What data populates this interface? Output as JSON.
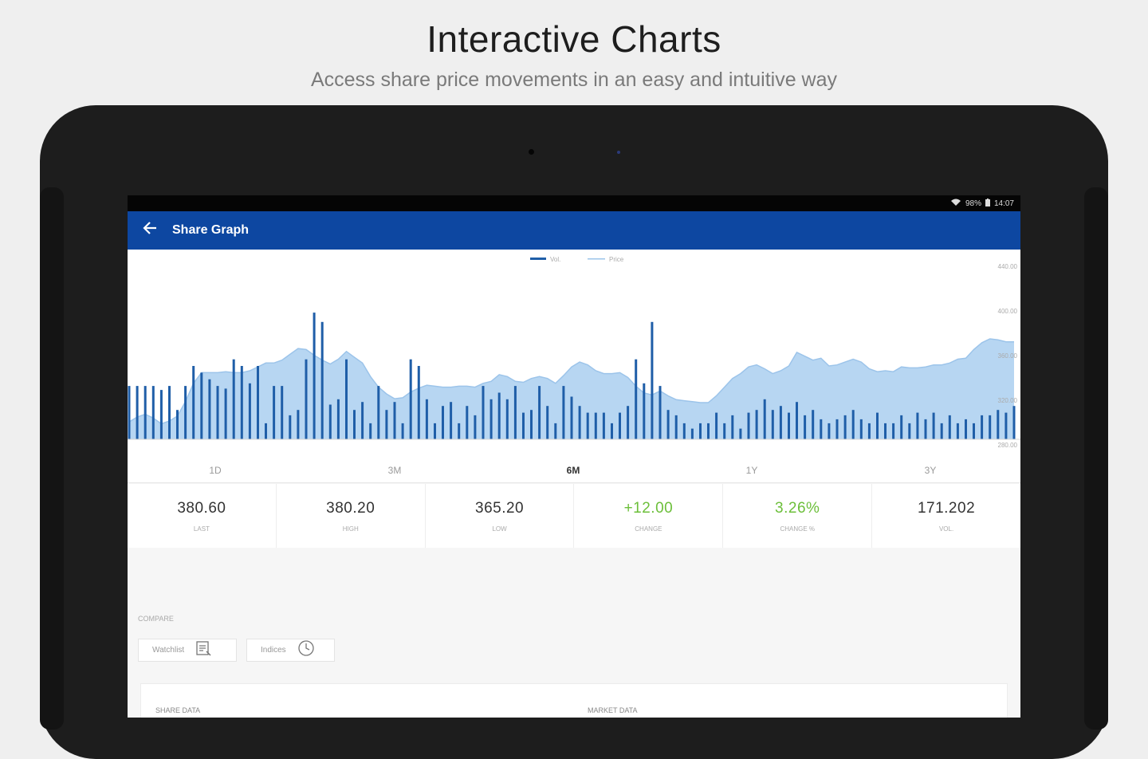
{
  "hero": {
    "title": "Interactive Charts",
    "subtitle": "Access share price movements in an easy and intuitive way"
  },
  "status_bar": {
    "signal_icon": "wifi-signal-icon",
    "battery_percent": "98%",
    "battery_icon": "battery-icon",
    "time": "14:07"
  },
  "app_bar": {
    "back_icon": "arrow-left-icon",
    "title": "Share Graph",
    "color": "#0d47a1"
  },
  "chart": {
    "legend": [
      "Vol.",
      "Price"
    ],
    "colors": {
      "volume": "#1f5ea8",
      "price_fill": "#b7d6f2",
      "price_line": "#9cc4ea"
    },
    "y_ticks": [
      "440.00",
      "400.00",
      "360.00",
      "320.00",
      "280.00"
    ]
  },
  "chart_data": {
    "type": "area",
    "series": [
      {
        "name": "Price",
        "values": [
          278,
          283,
          286,
          282,
          276,
          279,
          284,
          299,
          318,
          329,
          329,
          329,
          330,
          329,
          329,
          331,
          335,
          339,
          339,
          342,
          348,
          354,
          353,
          347,
          342,
          338,
          343,
          351,
          345,
          339,
          325,
          314,
          307,
          302,
          303,
          309,
          313,
          316,
          315,
          314,
          314,
          315,
          315,
          314,
          318,
          320,
          327,
          325,
          320,
          319,
          323,
          325,
          323,
          318,
          326,
          335,
          340,
          337,
          331,
          328,
          328,
          329,
          324,
          315,
          308,
          306,
          310,
          305,
          301,
          300,
          299,
          298,
          298,
          305,
          314,
          323,
          328,
          335,
          337,
          333,
          328,
          331,
          336,
          350,
          346,
          342,
          344,
          336,
          337,
          340,
          343,
          340,
          333,
          330,
          331,
          330,
          335,
          334,
          334,
          335,
          337,
          337,
          339,
          343,
          344,
          353,
          360,
          364,
          363,
          361,
          361
        ]
      },
      {
        "name": "Vol.",
        "values": [
          40,
          40,
          40,
          40,
          37,
          40,
          22,
          40,
          55,
          50,
          45,
          40,
          38,
          60,
          55,
          42,
          55,
          12,
          40,
          40,
          18,
          22,
          60,
          95,
          88,
          26,
          30,
          60,
          22,
          28,
          12,
          40,
          22,
          28,
          12,
          60,
          55,
          30,
          12,
          25,
          28,
          12,
          25,
          18,
          40,
          30,
          35,
          30,
          40,
          20,
          22,
          40,
          25,
          12,
          40,
          32,
          25,
          20,
          20,
          20,
          12,
          20,
          25,
          60,
          42,
          88,
          40,
          22,
          18,
          12,
          8,
          12,
          12,
          20,
          12,
          18,
          8,
          20,
          22,
          30,
          22,
          25,
          20,
          28,
          18,
          22,
          15,
          12,
          15,
          18,
          22,
          15,
          12,
          20,
          12,
          12,
          18,
          12,
          20,
          15,
          20,
          12,
          18,
          12,
          15,
          12,
          18,
          18,
          22,
          20,
          25
        ]
      }
    ],
    "y_range": [
      260,
      440
    ],
    "grid": false,
    "legend_placement": "top-center",
    "xlabel": "",
    "ylabel": ""
  },
  "ranges": [
    {
      "label": "1D",
      "active": false
    },
    {
      "label": "3M",
      "active": false
    },
    {
      "label": "6M",
      "active": true
    },
    {
      "label": "1Y",
      "active": false
    },
    {
      "label": "3Y",
      "active": false
    }
  ],
  "stats": [
    {
      "value": "380.60",
      "label": "LAST",
      "positive": false
    },
    {
      "value": "380.20",
      "label": "HIGH",
      "positive": false
    },
    {
      "value": "365.20",
      "label": "LOW",
      "positive": false
    },
    {
      "value": "+12.00",
      "label": "CHANGE",
      "positive": true
    },
    {
      "value": "3.26%",
      "label": "CHANGE %",
      "positive": true
    },
    {
      "value": "171.202",
      "label": "VOL.",
      "positive": false
    }
  ],
  "compare": {
    "label": "COMPARE",
    "watchlist": {
      "label": "Watchlist",
      "icon": "watchlist-icon"
    },
    "indices": {
      "label": "Indices",
      "icon": "indices-icon"
    }
  },
  "details": {
    "share_data": "SHARE DATA",
    "market_data": "MARKET DATA"
  }
}
